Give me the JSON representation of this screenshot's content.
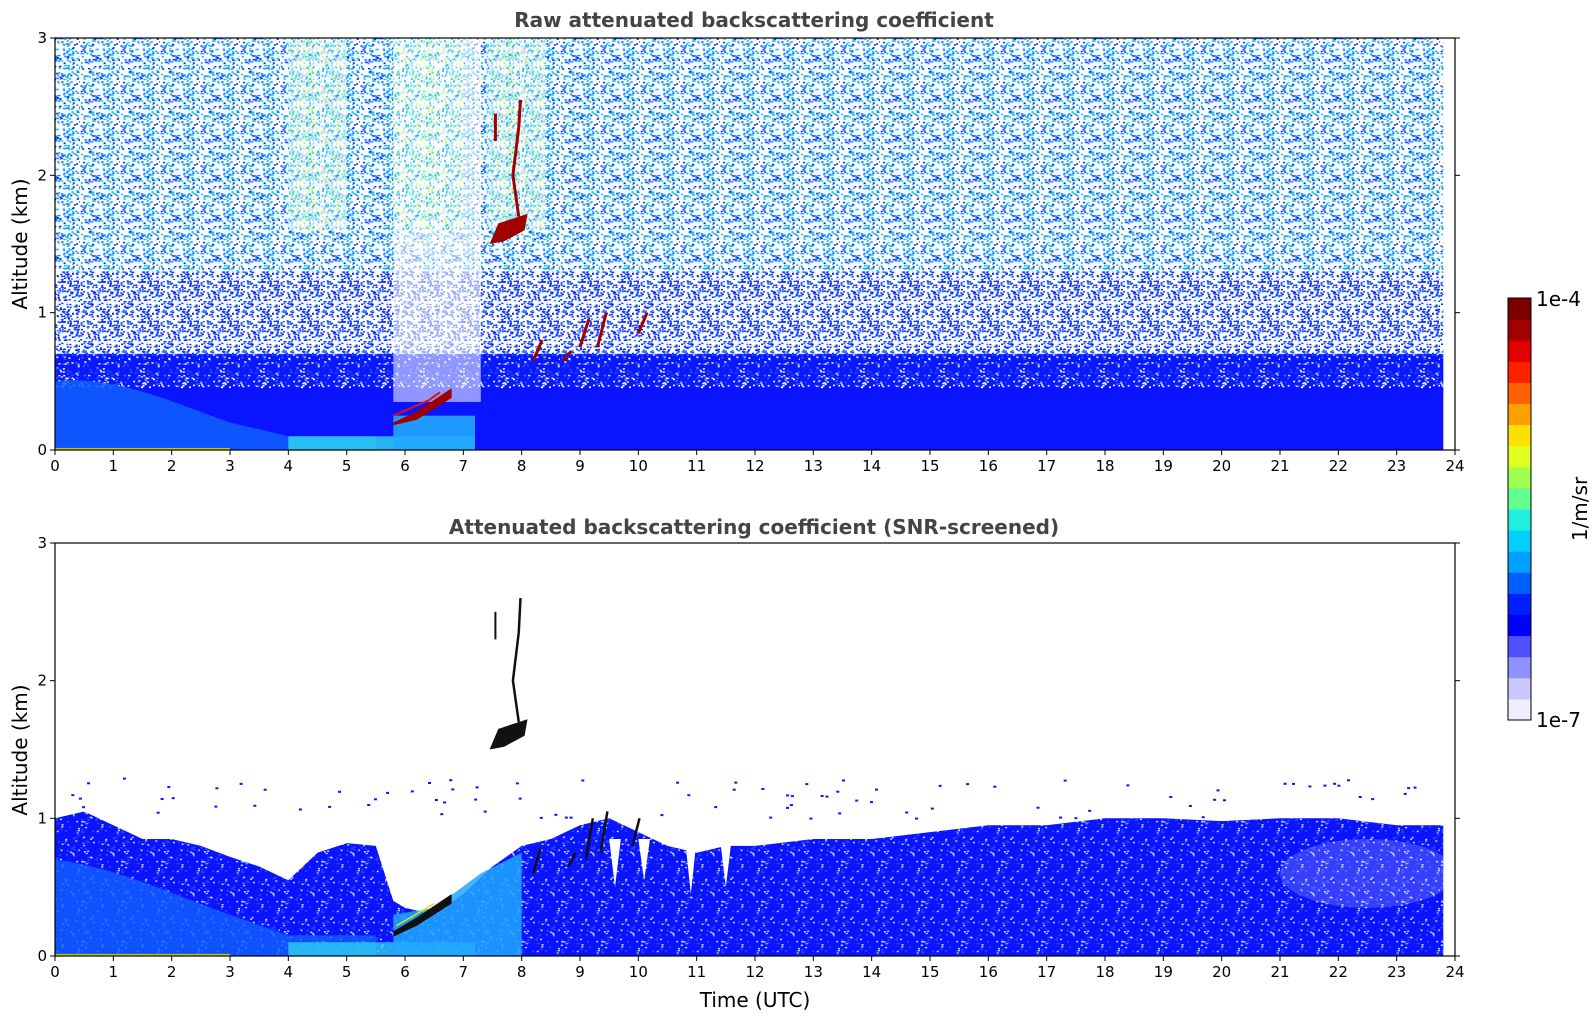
{
  "chart_data": [
    {
      "type": "heatmap",
      "title": "Raw attenuated backscattering coefficient",
      "xlabel": "",
      "ylabel": "Altitude (km)",
      "xlim": [
        0,
        24
      ],
      "ylim": [
        0,
        3
      ],
      "x_ticks": [
        "0",
        "1",
        "2",
        "3",
        "4",
        "5",
        "6",
        "7",
        "8",
        "9",
        "10",
        "11",
        "12",
        "13",
        "14",
        "15",
        "16",
        "17",
        "18",
        "19",
        "20",
        "21",
        "22",
        "23",
        "24"
      ],
      "y_ticks": [
        "0",
        "1",
        "2",
        "3"
      ],
      "color_scale": "log",
      "features": [
        {
          "label": "boundary layer",
          "x_start": 0,
          "x_end": 23.8,
          "y_top": 0.45
        },
        {
          "label": "elevated aerosol",
          "x_start": 5.8,
          "x_end": 6.8,
          "y_bottom": 0.2,
          "y_top": 0.45
        },
        {
          "label": "cloud",
          "x_start": 7.4,
          "x_end": 8.1,
          "y_bottom": 1.5,
          "y_top": 2.5
        },
        {
          "label": "cloud",
          "x_start": 8.2,
          "x_end": 10.2,
          "y_bottom": 0.6,
          "y_top": 1.0
        }
      ]
    },
    {
      "type": "heatmap",
      "title": "Attenuated backscattering coefficient (SNR-screened)",
      "xlabel": "Time (UTC)",
      "ylabel": "Altitude (km)",
      "xlim": [
        0,
        24
      ],
      "ylim": [
        0,
        3
      ],
      "x_ticks": [
        "0",
        "1",
        "2",
        "3",
        "4",
        "5",
        "6",
        "7",
        "8",
        "9",
        "10",
        "11",
        "12",
        "13",
        "14",
        "15",
        "16",
        "17",
        "18",
        "19",
        "20",
        "21",
        "22",
        "23",
        "24"
      ],
      "y_ticks": [
        "0",
        "1",
        "2",
        "3"
      ],
      "color_scale": "log",
      "features": [
        {
          "label": "boundary layer",
          "x_start": 0,
          "x_end": 23.8,
          "y_top": 1.0
        },
        {
          "label": "cloud",
          "x_start": 7.4,
          "x_end": 8.1,
          "y_bottom": 1.5,
          "y_top": 2.6
        }
      ]
    }
  ],
  "colorbar": {
    "label": "1/m/sr",
    "max_label": "1e-4",
    "min_label": "1e-7",
    "colors": [
      "#eeeeff",
      "#c8c8ff",
      "#9090ff",
      "#5050ff",
      "#0000ff",
      "#0020ff",
      "#0060ff",
      "#00a0ff",
      "#00d0ff",
      "#20f0e0",
      "#60ff90",
      "#a0ff50",
      "#e0ff20",
      "#ffe000",
      "#ffa000",
      "#ff6000",
      "#ff2000",
      "#e00000",
      "#a00000",
      "#7a0000"
    ]
  },
  "palette": {
    "white": "#ffffff",
    "pale": "#c8dcff",
    "deep_blue": "#0a14ff",
    "mid_blue": "#1060ff",
    "sky_blue": "#20a8ff",
    "cyan": "#30d8f0",
    "green_yellow": "#c8ff60",
    "dark_red": "#a00000",
    "red": "#e01010"
  }
}
